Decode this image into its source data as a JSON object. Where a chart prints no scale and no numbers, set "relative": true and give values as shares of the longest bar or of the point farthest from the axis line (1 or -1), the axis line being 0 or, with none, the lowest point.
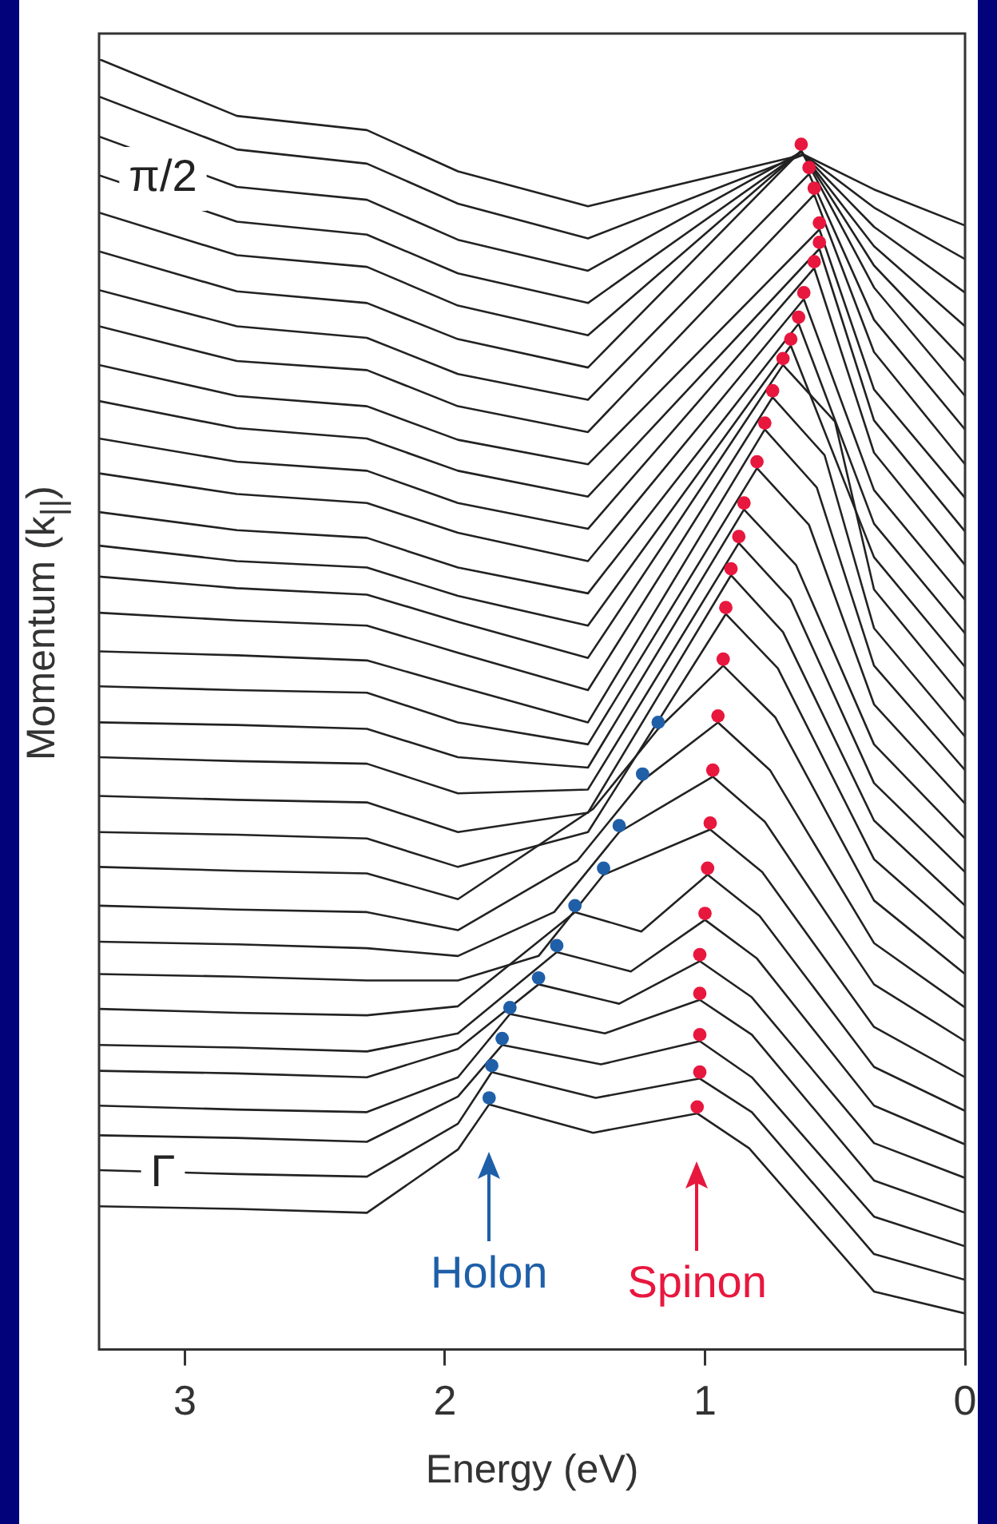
{
  "chart_data": {
    "type": "line",
    "relative": true,
    "xlabel": "Energy (eV)",
    "ylabel": "Momentum (k$_{||}$)",
    "xlim": [
      3.33,
      0
    ],
    "xticks": [
      3,
      2,
      1,
      0
    ],
    "annotations": [
      "π/2",
      "Γ",
      "Holon",
      "Spinon"
    ],
    "series": [
      {
        "color": "#222222",
        "x": [
          3.33,
          2.8,
          2.3,
          1.95,
          1.45,
          0.62,
          0.35,
          0
        ],
        "values": [
          1.0,
          0.956,
          0.945,
          0.913,
          0.886,
          0.926,
          0.899,
          0.871
        ]
      },
      {
        "color": "#222222",
        "x": [
          3.33,
          2.8,
          2.3,
          1.95,
          1.45,
          0.62,
          0.35,
          0
        ],
        "values": [
          0.971,
          0.93,
          0.919,
          0.888,
          0.861,
          0.926,
          0.885,
          0.845
        ]
      },
      {
        "color": "#222222",
        "x": [
          3.33,
          2.8,
          2.3,
          1.95,
          1.45,
          0.63,
          0.35,
          0
        ],
        "values": [
          0.94,
          0.901,
          0.891,
          0.86,
          0.836,
          0.928,
          0.87,
          0.819
        ]
      },
      {
        "color": "#222222",
        "x": [
          3.33,
          2.8,
          2.3,
          1.95,
          1.45,
          0.63,
          0.35,
          0
        ],
        "values": [
          0.91,
          0.874,
          0.864,
          0.834,
          0.811,
          0.928,
          0.855,
          0.793
        ]
      },
      {
        "color": "#222222",
        "x": [
          3.33,
          2.8,
          2.3,
          1.95,
          1.45,
          0.63,
          0.35,
          0
        ],
        "values": [
          0.881,
          0.848,
          0.839,
          0.809,
          0.786,
          0.929,
          0.84,
          0.766
        ]
      },
      {
        "color": "#222222",
        "x": [
          3.33,
          2.8,
          2.3,
          1.95,
          1.45,
          0.63,
          0.35,
          0
        ],
        "values": [
          0.851,
          0.82,
          0.811,
          0.783,
          0.761,
          0.929,
          0.823,
          0.739
        ]
      },
      {
        "color": "#222222",
        "x": [
          3.33,
          2.8,
          2.3,
          1.95,
          1.45,
          0.6,
          0.35,
          0
        ],
        "values": [
          0.821,
          0.793,
          0.784,
          0.756,
          0.736,
          0.911,
          0.798,
          0.713
        ]
      },
      {
        "color": "#222222",
        "x": [
          3.33,
          2.8,
          2.3,
          1.95,
          1.45,
          0.58,
          0.35,
          0
        ],
        "values": [
          0.793,
          0.766,
          0.759,
          0.731,
          0.711,
          0.895,
          0.773,
          0.686
        ]
      },
      {
        "color": "#222222",
        "x": [
          3.33,
          2.8,
          2.3,
          1.95,
          1.45,
          0.56,
          0.35,
          0
        ],
        "values": [
          0.763,
          0.739,
          0.731,
          0.705,
          0.686,
          0.868,
          0.744,
          0.66
        ]
      },
      {
        "color": "#222222",
        "x": [
          3.33,
          2.8,
          2.3,
          1.95,
          1.45,
          0.56,
          0.35,
          0
        ],
        "values": [
          0.735,
          0.714,
          0.706,
          0.681,
          0.661,
          0.853,
          0.72,
          0.634
        ]
      },
      {
        "color": "#222222",
        "x": [
          3.33,
          2.8,
          2.3,
          1.95,
          1.45,
          0.58,
          0.35,
          0
        ],
        "values": [
          0.706,
          0.688,
          0.681,
          0.656,
          0.636,
          0.838,
          0.695,
          0.608
        ]
      },
      {
        "color": "#222222",
        "x": [
          3.33,
          2.8,
          2.3,
          1.95,
          1.45,
          0.62,
          0.35,
          0
        ],
        "values": [
          0.679,
          0.663,
          0.656,
          0.633,
          0.611,
          0.814,
          0.666,
          0.581
        ]
      },
      {
        "color": "#222222",
        "x": [
          3.33,
          2.8,
          2.3,
          1.95,
          1.45,
          0.64,
          0.35,
          0
        ],
        "values": [
          0.649,
          0.635,
          0.629,
          0.606,
          0.586,
          0.795,
          0.64,
          0.555
        ]
      },
      {
        "color": "#222222",
        "x": [
          3.33,
          2.8,
          2.3,
          1.95,
          1.45,
          0.67,
          0.35,
          0
        ],
        "values": [
          0.623,
          0.611,
          0.606,
          0.584,
          0.561,
          0.778,
          0.614,
          0.529
        ]
      },
      {
        "color": "#222222",
        "x": [
          3.33,
          2.8,
          2.3,
          1.95,
          1.45,
          0.7,
          0.5,
          0.35,
          0
        ],
        "values": [
          0.599,
          0.59,
          0.585,
          0.564,
          0.536,
          0.763,
          0.719,
          0.589,
          0.503
        ]
      },
      {
        "color": "#222222",
        "x": [
          3.33,
          2.8,
          2.3,
          1.95,
          1.45,
          0.74,
          0.54,
          0.35,
          0
        ],
        "values": [
          0.571,
          0.565,
          0.561,
          0.54,
          0.511,
          0.738,
          0.693,
          0.559,
          0.475
        ]
      },
      {
        "color": "#222222",
        "x": [
          3.33,
          2.8,
          2.3,
          1.95,
          1.45,
          0.77,
          0.57,
          0.35,
          0
        ],
        "values": [
          0.541,
          0.538,
          0.534,
          0.514,
          0.486,
          0.713,
          0.668,
          0.53,
          0.449
        ]
      },
      {
        "color": "#222222",
        "x": [
          3.33,
          2.8,
          2.3,
          1.95,
          1.45,
          0.8,
          0.6,
          0.35,
          0
        ],
        "values": [
          0.514,
          0.511,
          0.509,
          0.486,
          0.469,
          0.683,
          0.639,
          0.5,
          0.423
        ]
      },
      {
        "color": "#222222",
        "x": [
          3.33,
          2.8,
          2.3,
          1.95,
          1.45,
          0.85,
          0.65,
          0.35,
          0
        ],
        "values": [
          0.486,
          0.484,
          0.481,
          0.459,
          0.451,
          0.651,
          0.608,
          0.469,
          0.396
        ]
      },
      {
        "color": "#222222",
        "x": [
          3.33,
          2.8,
          2.3,
          1.95,
          1.45,
          0.87,
          0.67,
          0.35,
          0
        ],
        "values": [
          0.459,
          0.456,
          0.454,
          0.431,
          0.434,
          0.625,
          0.581,
          0.439,
          0.37
        ]
      },
      {
        "color": "#222222",
        "x": [
          3.33,
          2.8,
          2.3,
          1.95,
          1.45,
          0.9,
          0.7,
          0.35,
          0
        ],
        "values": [
          0.429,
          0.426,
          0.424,
          0.401,
          0.416,
          0.6,
          0.556,
          0.41,
          0.344
        ]
      },
      {
        "color": "#222222",
        "x": [
          3.33,
          2.8,
          2.3,
          1.95,
          1.45,
          0.92,
          0.72,
          0.35,
          0
        ],
        "values": [
          0.401,
          0.399,
          0.396,
          0.374,
          0.401,
          0.57,
          0.528,
          0.38,
          0.318
        ]
      },
      {
        "color": "#222222",
        "x": [
          3.33,
          2.8,
          2.3,
          1.95,
          1.43,
          1.18,
          0.93,
          0.73,
          0.35,
          0
        ],
        "values": [
          0.374,
          0.371,
          0.369,
          0.349,
          0.419,
          0.481,
          0.53,
          0.49,
          0.348,
          0.291
        ]
      },
      {
        "color": "#222222",
        "x": [
          3.33,
          2.8,
          2.3,
          1.95,
          1.49,
          1.24,
          0.95,
          0.75,
          0.35,
          0
        ],
        "values": [
          0.344,
          0.341,
          0.339,
          0.325,
          0.379,
          0.441,
          0.486,
          0.449,
          0.315,
          0.265
        ]
      },
      {
        "color": "#222222",
        "x": [
          3.33,
          2.8,
          2.3,
          1.95,
          1.58,
          1.33,
          0.97,
          0.77,
          0.35,
          0
        ],
        "values": [
          0.316,
          0.314,
          0.311,
          0.305,
          0.339,
          0.401,
          0.444,
          0.409,
          0.283,
          0.239
        ]
      },
      {
        "color": "#222222",
        "x": [
          3.33,
          2.8,
          2.3,
          1.95,
          1.64,
          1.39,
          0.98,
          0.78,
          0.35,
          0
        ],
        "values": [
          0.291,
          0.289,
          0.286,
          0.286,
          0.305,
          0.368,
          0.403,
          0.37,
          0.25,
          0.211
        ]
      },
      {
        "color": "#222222",
        "x": [
          3.33,
          2.8,
          2.3,
          1.95,
          1.5,
          1.245,
          0.99,
          0.79,
          0.35,
          0
        ],
        "values": [
          0.264,
          0.261,
          0.259,
          0.266,
          0.339,
          0.324,
          0.368,
          0.336,
          0.219,
          0.185
        ]
      },
      {
        "color": "#222222",
        "x": [
          3.33,
          2.8,
          2.3,
          1.95,
          1.57,
          1.285,
          1.0,
          0.8,
          0.35,
          0
        ],
        "values": [
          0.236,
          0.234,
          0.231,
          0.245,
          0.308,
          0.293,
          0.333,
          0.303,
          0.189,
          0.159
        ]
      },
      {
        "color": "#222222",
        "x": [
          3.33,
          2.8,
          2.3,
          1.95,
          1.64,
          1.33,
          1.02,
          0.82,
          0.35,
          0
        ],
        "values": [
          0.216,
          0.214,
          0.211,
          0.233,
          0.283,
          0.268,
          0.301,
          0.273,
          0.16,
          0.133
        ]
      },
      {
        "color": "#222222",
        "x": [
          3.33,
          2.8,
          2.3,
          1.95,
          1.75,
          1.385,
          1.02,
          0.82,
          0.35,
          0
        ],
        "values": [
          0.189,
          0.186,
          0.184,
          0.211,
          0.26,
          0.245,
          0.271,
          0.244,
          0.131,
          0.106
        ]
      },
      {
        "color": "#222222",
        "x": [
          3.33,
          2.8,
          2.3,
          1.95,
          1.78,
          1.4,
          1.02,
          0.82,
          0.35,
          0
        ],
        "values": [
          0.166,
          0.164,
          0.161,
          0.196,
          0.236,
          0.221,
          0.239,
          0.211,
          0.103,
          0.08
        ]
      },
      {
        "color": "#222222",
        "x": [
          3.33,
          2.8,
          2.3,
          1.95,
          1.82,
          1.42,
          1.02,
          0.82,
          0.35,
          0
        ],
        "values": [
          0.139,
          0.136,
          0.134,
          0.175,
          0.215,
          0.195,
          0.21,
          0.184,
          0.074,
          0.054
        ]
      },
      {
        "color": "#222222",
        "x": [
          3.33,
          2.8,
          2.3,
          1.95,
          1.83,
          1.43,
          1.03,
          0.83,
          0.35,
          0
        ],
        "values": [
          0.111,
          0.109,
          0.106,
          0.155,
          0.19,
          0.168,
          0.183,
          0.156,
          0.045,
          0.028
        ]
      },
      {
        "type": "scatter",
        "color": "#1f5fa8",
        "marker": "circle",
        "x": [
          1.18,
          1.24,
          1.33,
          1.39,
          1.5,
          1.57,
          1.64,
          1.75,
          1.78,
          1.82,
          1.83
        ],
        "values": [
          0.486,
          0.446,
          0.406,
          0.373,
          0.344,
          0.313,
          0.288,
          0.265,
          0.241,
          0.22,
          0.195
        ]
      },
      {
        "type": "scatter",
        "color": "#e8173e",
        "marker": "circle",
        "x": [
          0.63,
          0.6,
          0.58,
          0.56,
          0.56,
          0.58,
          0.62,
          0.64,
          0.67,
          0.7,
          0.74,
          0.77,
          0.8,
          0.85,
          0.87,
          0.9,
          0.92,
          0.93,
          0.95,
          0.97,
          0.98,
          0.99,
          1.0,
          1.02,
          1.02,
          1.02,
          1.02,
          1.03
        ],
        "values": [
          0.934,
          0.916,
          0.9,
          0.873,
          0.858,
          0.843,
          0.819,
          0.8,
          0.783,
          0.768,
          0.743,
          0.718,
          0.688,
          0.656,
          0.63,
          0.605,
          0.575,
          0.535,
          0.491,
          0.449,
          0.408,
          0.373,
          0.338,
          0.306,
          0.276,
          0.244,
          0.215,
          0.188
        ]
      }
    ]
  }
}
